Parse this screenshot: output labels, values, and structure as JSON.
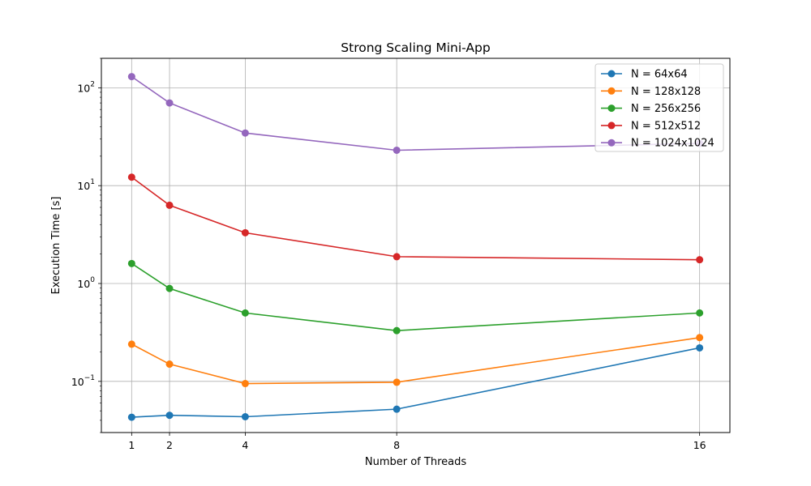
{
  "chart_data": {
    "type": "line",
    "title": "Strong Scaling Mini-App",
    "xlabel": "Number of Threads",
    "ylabel": "Execution Time [s]",
    "x": [
      1,
      2,
      4,
      8,
      16
    ],
    "xticks": [
      "1",
      "2",
      "4",
      "8",
      "16"
    ],
    "xlim": [
      0.2,
      16.8
    ],
    "yscale": "log",
    "ylim": [
      0.03,
      200
    ],
    "yticks": [
      {
        "value": 0.1,
        "base": "10",
        "exp": "−1"
      },
      {
        "value": 1,
        "base": "10",
        "exp": "0"
      },
      {
        "value": 10,
        "base": "10",
        "exp": "1"
      },
      {
        "value": 100,
        "base": "10",
        "exp": "2"
      }
    ],
    "grid": true,
    "legend_position": "top-right",
    "series": [
      {
        "name": "N = 64x64",
        "color": "#1f77b4",
        "values": [
          0.043,
          0.045,
          0.0435,
          0.052,
          0.22
        ]
      },
      {
        "name": "N = 128x128",
        "color": "#ff7f0e",
        "values": [
          0.24,
          0.15,
          0.095,
          0.098,
          0.28
        ]
      },
      {
        "name": "N = 256x256",
        "color": "#2ca02c",
        "values": [
          1.6,
          0.89,
          0.5,
          0.33,
          0.5
        ]
      },
      {
        "name": "N = 512x512",
        "color": "#d62728",
        "values": [
          12.2,
          6.3,
          3.3,
          1.88,
          1.75
        ]
      },
      {
        "name": "N = 1024x1024",
        "color": "#9467bd",
        "values": [
          130,
          70,
          34.5,
          23,
          27
        ]
      }
    ]
  }
}
